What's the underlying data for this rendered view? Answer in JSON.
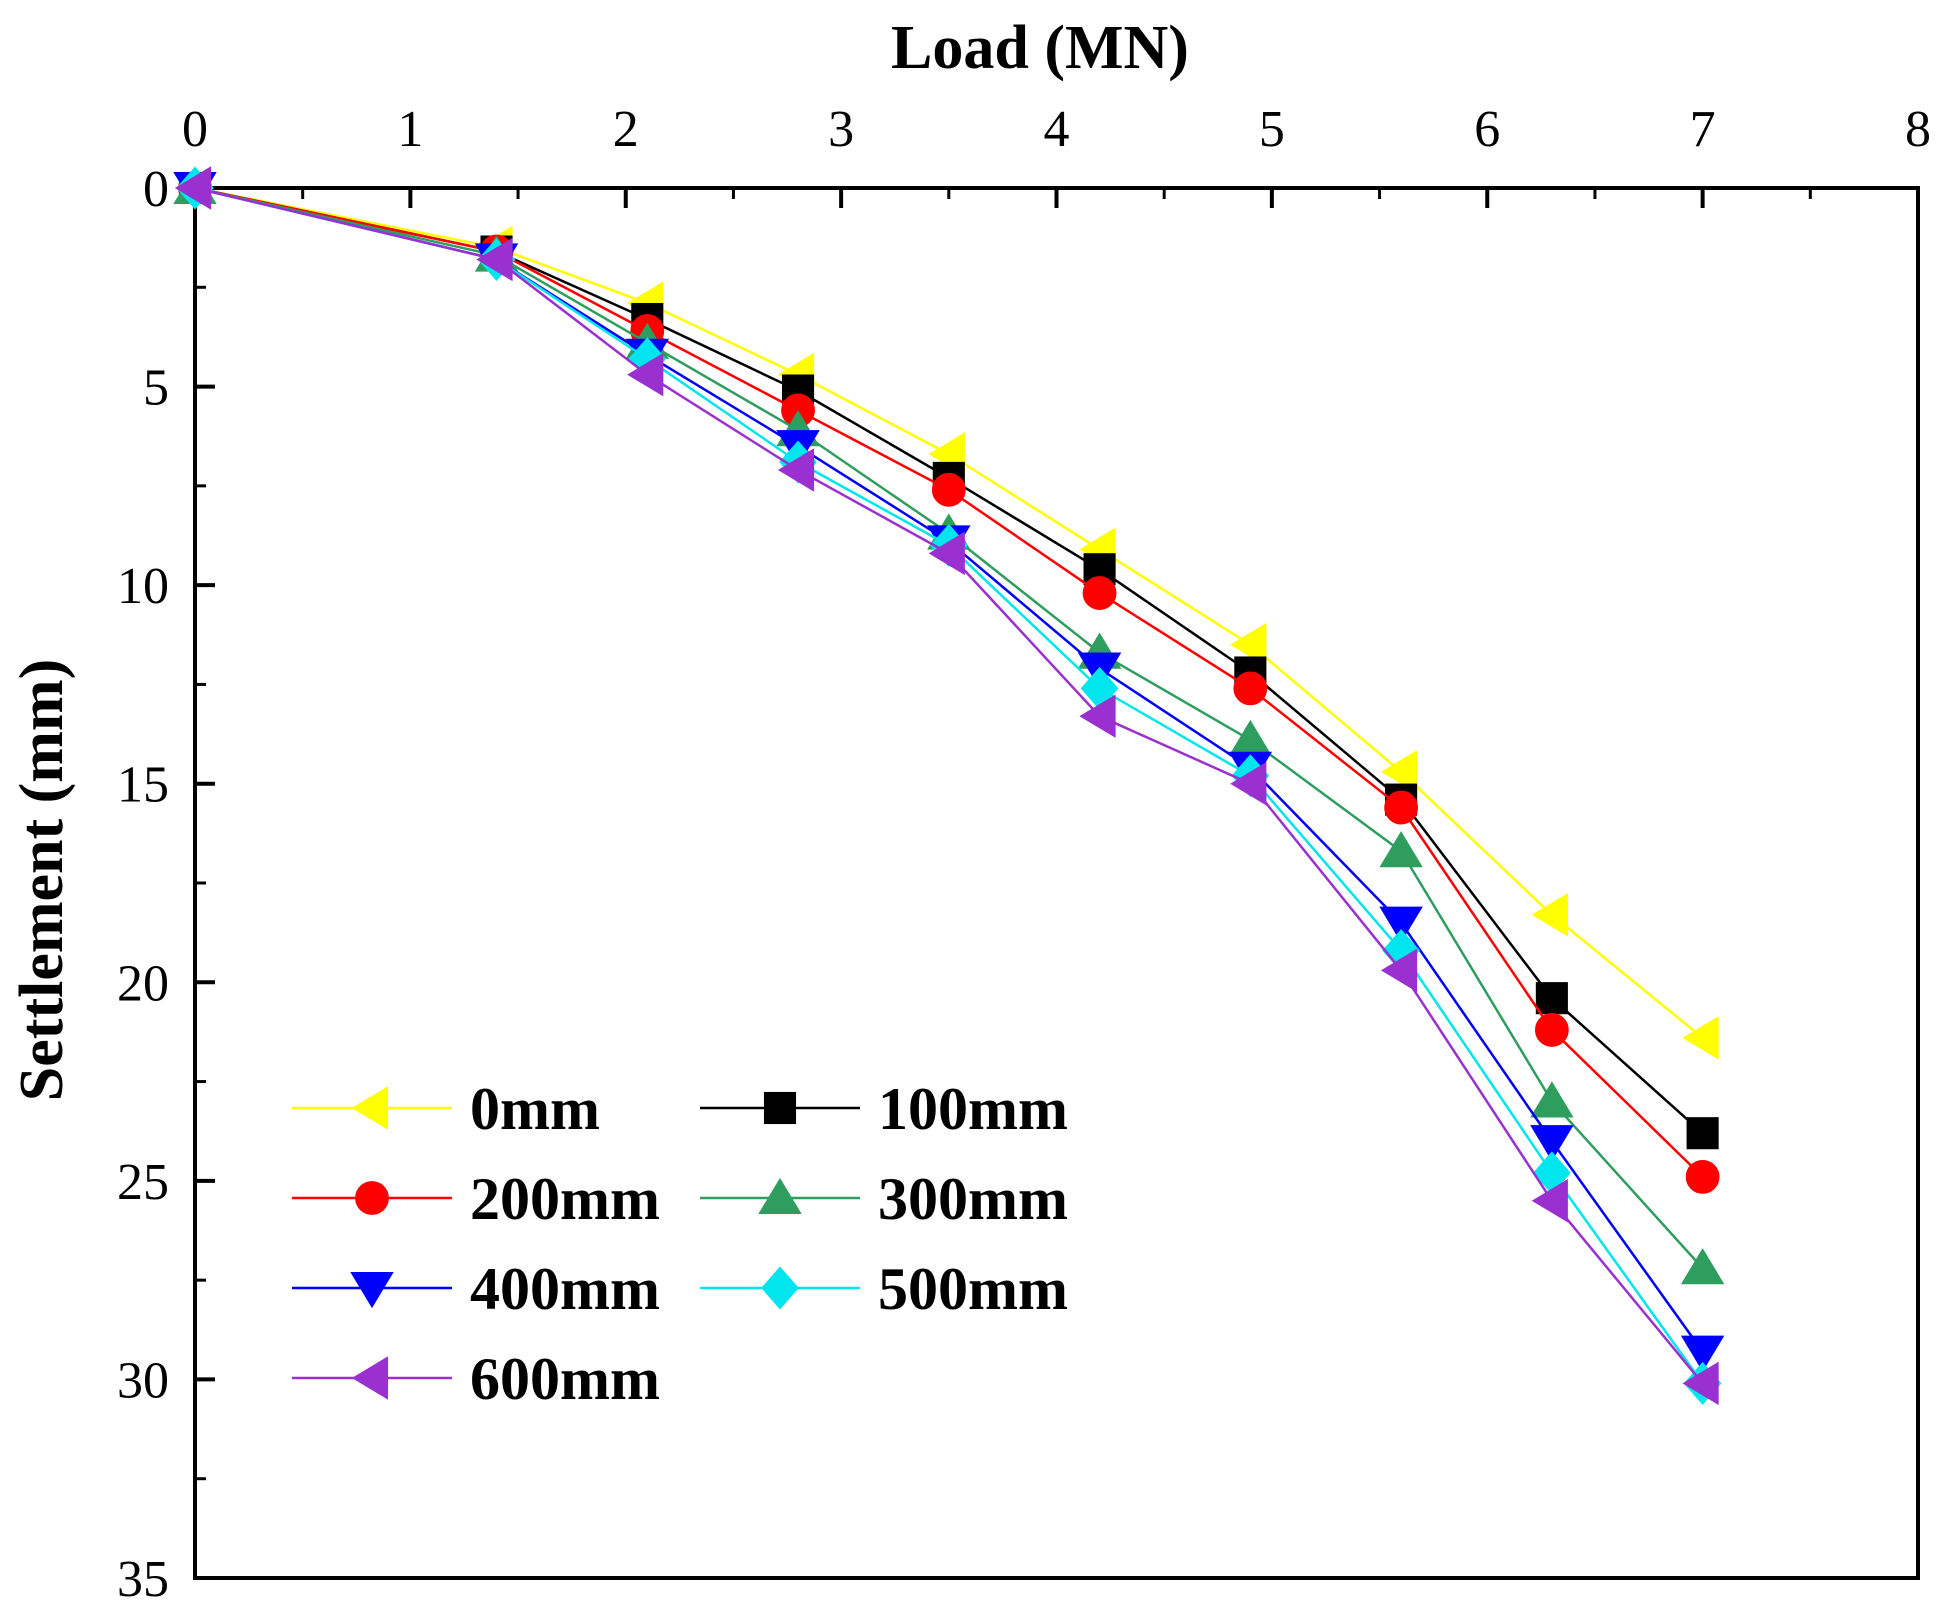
{
  "chart_data": {
    "type": "line",
    "xlabel": "Load (MN)",
    "ylabel": "Settlement (mm)",
    "xlim": [
      0,
      8
    ],
    "ylim": [
      0,
      35
    ],
    "y_inverted": true,
    "x_axis_position": "top",
    "xticks": [
      "0",
      "1",
      "2",
      "3",
      "4",
      "5",
      "6",
      "7",
      "8"
    ],
    "yticks": [
      "0",
      "5",
      "10",
      "15",
      "20",
      "25",
      "30",
      "35"
    ],
    "grid": false,
    "legend": {
      "position": "bottom-left",
      "columns": 2
    },
    "x": [
      0,
      1.4,
      2.1,
      2.8,
      3.5,
      4.2,
      4.9,
      5.6,
      6.3,
      7.0
    ],
    "series": [
      {
        "name": "0mm",
        "color": "#ffff00",
        "marker": "triangle-left",
        "values": [
          0,
          1.5,
          2.9,
          4.7,
          6.7,
          9.1,
          11.5,
          14.7,
          18.3,
          21.4
        ]
      },
      {
        "name": "100mm",
        "color": "#000000",
        "marker": "square",
        "values": [
          0,
          1.6,
          3.3,
          5.1,
          7.3,
          9.6,
          12.2,
          15.4,
          20.4,
          23.8
        ]
      },
      {
        "name": "200mm",
        "color": "#ff0000",
        "marker": "circle",
        "values": [
          0,
          1.6,
          3.6,
          5.6,
          7.6,
          10.2,
          12.6,
          15.6,
          21.2,
          24.9
        ]
      },
      {
        "name": "300mm",
        "color": "#2e9e5e",
        "marker": "triangle-up",
        "values": [
          0,
          1.7,
          3.9,
          6.1,
          8.7,
          11.7,
          13.9,
          16.7,
          23.0,
          27.2
        ]
      },
      {
        "name": "400mm",
        "color": "#0000ff",
        "marker": "triangle-down",
        "values": [
          0,
          1.8,
          4.2,
          6.5,
          8.9,
          12.1,
          14.6,
          18.5,
          24.0,
          29.3
        ]
      },
      {
        "name": "500mm",
        "color": "#00e5ee",
        "marker": "diamond",
        "values": [
          0,
          1.8,
          4.3,
          6.9,
          9.0,
          12.6,
          14.8,
          19.2,
          24.8,
          30.1
        ]
      },
      {
        "name": "600mm",
        "color": "#9b30d0",
        "marker": "triangle-left",
        "values": [
          0,
          1.8,
          4.7,
          7.1,
          9.2,
          13.3,
          15.0,
          19.7,
          25.5,
          30.1
        ]
      }
    ]
  }
}
